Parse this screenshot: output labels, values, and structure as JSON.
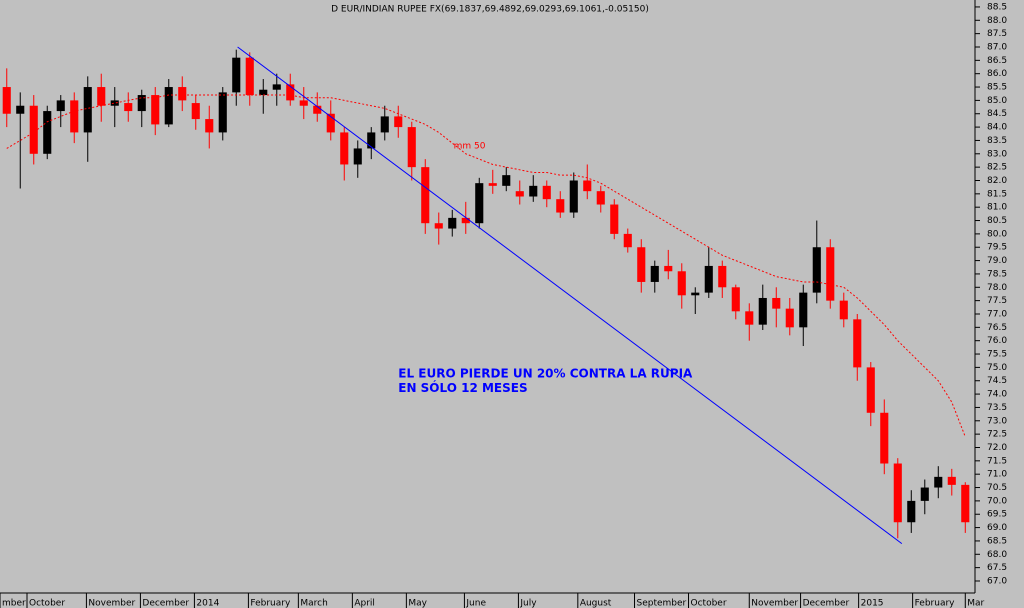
{
  "chart_data": {
    "type": "candlestick",
    "title": "D EUR/INDIAN RUPEE FX(69.1837,69.4892,69.0293,69.1061,-0.05150)",
    "up_color": "#000000",
    "down_color": "#ff0000",
    "xlim": [
      -0.5,
      71.72
    ],
    "ylim": [
      66.55,
      88.76
    ],
    "xticks": [
      {
        "value": -0.5,
        "label": "mber"
      },
      {
        "value": 1.5,
        "label": "October"
      },
      {
        "value": 5.9,
        "label": "November"
      },
      {
        "value": 9.9,
        "label": "December"
      },
      {
        "value": 13.9,
        "label": "2014"
      },
      {
        "value": 17.9,
        "label": "February"
      },
      {
        "value": 21.6,
        "label": "March"
      },
      {
        "value": 25.6,
        "label": "April"
      },
      {
        "value": 29.6,
        "label": "May"
      },
      {
        "value": 33.9,
        "label": "June"
      },
      {
        "value": 37.9,
        "label": "July"
      },
      {
        "value": 42.3,
        "label": "August"
      },
      {
        "value": 46.5,
        "label": "September"
      },
      {
        "value": 50.5,
        "label": "October"
      },
      {
        "value": 55.0,
        "label": "November"
      },
      {
        "value": 58.8,
        "label": "December"
      },
      {
        "value": 63.1,
        "label": "2015"
      },
      {
        "value": 67.1,
        "label": "February"
      },
      {
        "value": 71.0,
        "label": "Mar"
      }
    ],
    "yticks": [
      {
        "value": 67,
        "label": "67.0"
      },
      67.5,
      {
        "value": 68,
        "label": "68.0"
      },
      68.5,
      {
        "value": 69,
        "label": "69.0"
      },
      69.5,
      {
        "value": 70,
        "label": "70.0"
      },
      70.5,
      {
        "value": 71,
        "label": "71.0"
      },
      71.5,
      {
        "value": 72,
        "label": "72.0"
      },
      72.5,
      {
        "value": 73,
        "label": "73.0"
      },
      73.5,
      {
        "value": 74,
        "label": "74.0"
      },
      74.5,
      {
        "value": 75,
        "label": "75.0"
      },
      75.5,
      {
        "value": 76,
        "label": "76.0"
      },
      76.5,
      {
        "value": 77,
        "label": "77.0"
      },
      77.5,
      {
        "value": 78,
        "label": "78.0"
      },
      78.5,
      {
        "value": 79,
        "label": "79.0"
      },
      79.5,
      {
        "value": 80,
        "label": "80.0"
      },
      80.5,
      {
        "value": 81,
        "label": "81.0"
      },
      81.5,
      {
        "value": 82,
        "label": "82.0"
      },
      82.5,
      {
        "value": 83,
        "label": "83.0"
      },
      83.5,
      {
        "value": 84,
        "label": "84.0"
      },
      84.5,
      {
        "value": 85,
        "label": "85.0"
      },
      85.5,
      {
        "value": 86,
        "label": "86.0"
      },
      86.5,
      {
        "value": 87,
        "label": "87.0"
      },
      87.5,
      {
        "value": 88,
        "label": "88.0"
      },
      88.5
    ],
    "x": [
      0,
      1,
      2,
      3,
      4,
      5,
      6,
      7,
      8,
      9,
      10,
      11,
      12,
      13,
      14,
      15,
      16,
      17,
      18,
      19,
      20,
      21,
      22,
      23,
      24,
      25,
      26,
      27,
      28,
      29,
      30,
      31,
      32,
      33,
      34,
      35,
      36,
      37,
      38,
      39,
      40,
      41,
      42,
      43,
      44,
      45,
      46,
      47,
      48,
      49,
      50,
      51,
      52,
      53,
      54,
      55,
      56,
      57,
      58,
      59,
      60,
      61,
      62,
      63,
      64,
      65,
      66,
      67,
      68,
      69,
      70,
      71
    ],
    "open": [
      85.5,
      84.5,
      84.8,
      83.0,
      84.6,
      85.0,
      83.8,
      85.5,
      84.8,
      84.9,
      84.6,
      85.2,
      84.1,
      85.5,
      84.9,
      84.3,
      83.8,
      85.3,
      86.6,
      85.2,
      85.4,
      85.6,
      85.0,
      84.8,
      84.5,
      83.8,
      82.6,
      83.2,
      83.8,
      84.4,
      84.0,
      82.5,
      80.4,
      80.2,
      80.6,
      80.4,
      81.9,
      81.8,
      81.6,
      81.4,
      81.8,
      81.3,
      80.8,
      82.0,
      81.6,
      81.1,
      80.0,
      79.5,
      78.2,
      78.8,
      78.6,
      77.7,
      77.8,
      78.8,
      78.0,
      77.1,
      76.6,
      77.6,
      77.2,
      76.5,
      77.8,
      79.5,
      77.5,
      76.8,
      75.0,
      73.3,
      71.4,
      69.2,
      70.0,
      70.5,
      70.9,
      70.6
    ],
    "high": [
      86.2,
      85.3,
      85.2,
      84.8,
      85.2,
      85.3,
      85.9,
      86.0,
      85.5,
      85.3,
      85.4,
      85.5,
      85.8,
      85.9,
      85.2,
      84.8,
      85.5,
      86.9,
      86.8,
      85.8,
      86.0,
      86.0,
      85.5,
      85.3,
      85.0,
      84.0,
      83.5,
      84.0,
      84.8,
      84.8,
      84.2,
      82.8,
      80.8,
      80.9,
      81.2,
      82.1,
      82.4,
      82.5,
      82.0,
      82.2,
      82.0,
      81.6,
      82.3,
      82.6,
      81.8,
      81.3,
      80.2,
      79.8,
      79.0,
      79.4,
      78.9,
      78.0,
      79.5,
      79.0,
      78.1,
      77.4,
      78.1,
      78.0,
      77.6,
      78.1,
      80.5,
      79.8,
      77.8,
      77.0,
      75.2,
      73.8,
      71.6,
      70.4,
      70.8,
      71.3,
      71.2,
      70.7
    ],
    "low": [
      84.0,
      81.7,
      82.6,
      82.8,
      84.0,
      83.4,
      82.7,
      84.2,
      84.0,
      84.2,
      84.0,
      83.7,
      84.0,
      84.6,
      83.9,
      83.2,
      83.5,
      84.8,
      84.8,
      84.5,
      84.8,
      84.8,
      84.3,
      84.2,
      83.5,
      82.0,
      82.1,
      82.8,
      83.5,
      83.6,
      82.0,
      80.0,
      79.6,
      79.9,
      80.0,
      80.2,
      81.5,
      81.6,
      81.1,
      81.2,
      81.0,
      80.6,
      80.6,
      81.3,
      80.8,
      79.8,
      79.3,
      77.8,
      77.8,
      78.3,
      77.2,
      77.0,
      77.6,
      77.6,
      76.8,
      76.0,
      76.4,
      76.5,
      76.2,
      75.8,
      77.4,
      77.2,
      76.5,
      74.5,
      72.8,
      71.0,
      68.6,
      68.8,
      69.5,
      70.1,
      70.2,
      68.8
    ],
    "close": [
      84.5,
      84.8,
      83.0,
      84.6,
      85.0,
      83.8,
      85.5,
      84.8,
      85.0,
      84.6,
      85.2,
      84.1,
      85.5,
      85.0,
      84.3,
      83.8,
      85.3,
      86.6,
      85.2,
      85.4,
      85.6,
      85.0,
      84.8,
      84.5,
      83.8,
      82.6,
      83.2,
      83.8,
      84.4,
      84.0,
      82.5,
      80.4,
      80.2,
      80.6,
      80.4,
      81.9,
      81.8,
      82.2,
      81.4,
      81.8,
      81.3,
      80.8,
      82.0,
      81.6,
      81.1,
      80.0,
      79.5,
      78.2,
      78.8,
      78.6,
      77.7,
      77.8,
      78.8,
      78.0,
      77.1,
      76.6,
      77.6,
      77.2,
      76.5,
      77.8,
      79.5,
      77.5,
      76.8,
      75.0,
      73.3,
      71.4,
      69.2,
      70.0,
      70.5,
      70.9,
      70.6,
      69.2
    ],
    "moving_average": {
      "color": "#ff0000",
      "values": [
        83.2,
        83.5,
        83.8,
        84.2,
        84.4,
        84.6,
        84.7,
        84.8,
        84.9,
        85.0,
        85.1,
        85.1,
        85.2,
        85.2,
        85.2,
        85.2,
        85.2,
        85.2,
        85.2,
        85.2,
        85.2,
        85.2,
        85.1,
        85.1,
        85.1,
        85.0,
        84.9,
        84.8,
        84.7,
        84.5,
        84.3,
        84.1,
        83.8,
        83.4,
        83.0,
        82.8,
        82.6,
        82.5,
        82.4,
        82.3,
        82.3,
        82.2,
        82.2,
        82.1,
        81.9,
        81.6,
        81.3,
        81.0,
        80.7,
        80.4,
        80.1,
        79.8,
        79.5,
        79.2,
        79.0,
        78.8,
        78.6,
        78.4,
        78.3,
        78.2,
        78.2,
        78.1,
        78.0,
        77.6,
        77.1,
        76.6,
        76.0,
        75.5,
        75.0,
        74.5,
        73.7,
        72.4
      ]
    },
    "trendline": {
      "color": "#0000ff",
      "x": [
        17.1,
        66.3
      ],
      "y": [
        87.0,
        68.4
      ]
    },
    "annotations": [
      {
        "text": "mm 50",
        "x": 33.1,
        "y": 83.3,
        "color": "#ff0000"
      },
      {
        "text": "EL EURO PIERDE UN 20% CONTRA LA RUPIA",
        "x": 29.0,
        "y": 74.75,
        "color": "#0000ff"
      },
      {
        "text": "EN SÓLO 12 MESES",
        "x": 29.0,
        "y": 74.2,
        "color": "#0000ff"
      }
    ]
  }
}
